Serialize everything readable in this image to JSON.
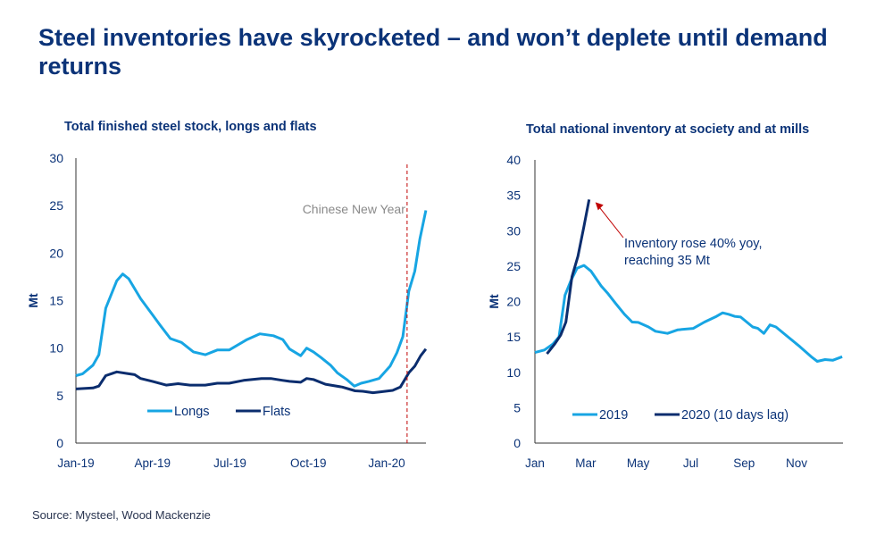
{
  "title": "Steel inventories have skyrocketed – and won’t deplete until demand returns",
  "source": "Source: Mysteel, Wood Mackenzie",
  "colors": {
    "light_blue": "#17a5e3",
    "navy": "#0b2d6e",
    "title": "#0b3378",
    "annotation_red": "#c00000"
  },
  "chart_data": [
    {
      "type": "line",
      "title": "Total finished steel stock, longs and flats",
      "xlabel": "",
      "ylabel": "Mt",
      "ylim": [
        0,
        30
      ],
      "yticks": [
        0,
        5,
        10,
        15,
        20,
        25,
        30
      ],
      "xticks": [
        {
          "date": "2019-01-01",
          "label": "Jan-19"
        },
        {
          "date": "2019-04-01",
          "label": "Apr-19"
        },
        {
          "date": "2019-07-01",
          "label": "Jul-19"
        },
        {
          "date": "2019-10-01",
          "label": "Oct-19"
        },
        {
          "date": "2020-01-01",
          "label": "Jan-20"
        }
      ],
      "grid": false,
      "legend": "bottom-center",
      "annotation": {
        "label": "Chinese New Year",
        "date": "2020-01-25",
        "style": "dashed-vertical-line"
      },
      "series": [
        {
          "name": "Longs",
          "color": "#17a5e3",
          "points": [
            [
              "2019-01-01",
              7.1
            ],
            [
              "2019-01-09",
              7.3
            ],
            [
              "2019-01-21",
              8.2
            ],
            [
              "2019-01-28",
              9.3
            ],
            [
              "2019-02-05",
              14.2
            ],
            [
              "2019-02-18",
              17.1
            ],
            [
              "2019-02-25",
              17.8
            ],
            [
              "2019-03-04",
              17.3
            ],
            [
              "2019-03-18",
              15.2
            ],
            [
              "2019-04-01",
              13.5
            ],
            [
              "2019-04-10",
              12.4
            ],
            [
              "2019-04-22",
              11.0
            ],
            [
              "2019-05-05",
              10.6
            ],
            [
              "2019-05-19",
              9.6
            ],
            [
              "2019-06-02",
              9.3
            ],
            [
              "2019-06-16",
              9.8
            ],
            [
              "2019-06-30",
              9.8
            ],
            [
              "2019-07-21",
              10.9
            ],
            [
              "2019-08-05",
              11.5
            ],
            [
              "2019-08-21",
              11.3
            ],
            [
              "2019-09-01",
              10.9
            ],
            [
              "2019-09-09",
              9.9
            ],
            [
              "2019-09-22",
              9.2
            ],
            [
              "2019-09-29",
              10.0
            ],
            [
              "2019-10-07",
              9.6
            ],
            [
              "2019-10-16",
              9.0
            ],
            [
              "2019-10-27",
              8.2
            ],
            [
              "2019-11-04",
              7.4
            ],
            [
              "2019-11-15",
              6.7
            ],
            [
              "2019-11-24",
              6.0
            ],
            [
              "2019-12-02",
              6.3
            ],
            [
              "2019-12-11",
              6.5
            ],
            [
              "2019-12-23",
              6.8
            ],
            [
              "2020-01-05",
              8.1
            ],
            [
              "2020-01-13",
              9.5
            ],
            [
              "2020-01-20",
              11.2
            ],
            [
              "2020-01-27",
              16.0
            ],
            [
              "2020-02-03",
              18.1
            ],
            [
              "2020-02-09",
              21.5
            ],
            [
              "2020-02-16",
              24.5
            ]
          ]
        },
        {
          "name": "Flats",
          "color": "#0b2d6e",
          "points": [
            [
              "2019-01-01",
              5.7
            ],
            [
              "2019-01-21",
              5.8
            ],
            [
              "2019-01-28",
              6.0
            ],
            [
              "2019-02-05",
              7.1
            ],
            [
              "2019-02-18",
              7.5
            ],
            [
              "2019-03-04",
              7.3
            ],
            [
              "2019-03-11",
              7.2
            ],
            [
              "2019-03-18",
              6.8
            ],
            [
              "2019-04-01",
              6.5
            ],
            [
              "2019-04-17",
              6.1
            ],
            [
              "2019-05-01",
              6.25
            ],
            [
              "2019-05-15",
              6.1
            ],
            [
              "2019-06-02",
              6.1
            ],
            [
              "2019-06-16",
              6.3
            ],
            [
              "2019-06-30",
              6.3
            ],
            [
              "2019-07-17",
              6.6
            ],
            [
              "2019-08-07",
              6.8
            ],
            [
              "2019-08-18",
              6.8
            ],
            [
              "2019-09-01",
              6.6
            ],
            [
              "2019-09-09",
              6.5
            ],
            [
              "2019-09-22",
              6.4
            ],
            [
              "2019-09-29",
              6.8
            ],
            [
              "2019-10-07",
              6.7
            ],
            [
              "2019-10-21",
              6.2
            ],
            [
              "2019-11-10",
              5.9
            ],
            [
              "2019-11-25",
              5.5
            ],
            [
              "2019-12-04",
              5.45
            ],
            [
              "2019-12-16",
              5.3
            ],
            [
              "2019-12-25",
              5.4
            ],
            [
              "2020-01-08",
              5.55
            ],
            [
              "2020-01-17",
              5.9
            ],
            [
              "2020-01-27",
              7.4
            ],
            [
              "2020-02-03",
              8.1
            ],
            [
              "2020-02-10",
              9.2
            ],
            [
              "2020-02-16",
              9.9
            ]
          ]
        }
      ]
    },
    {
      "type": "line",
      "title": "Total national inventory at society and at mills",
      "xlabel": "",
      "ylabel": "Mt",
      "ylim": [
        0,
        40
      ],
      "yticks": [
        0,
        5,
        10,
        15,
        20,
        25,
        30,
        35,
        40
      ],
      "xticks": [
        {
          "date": "01-01",
          "label": "Jan"
        },
        {
          "date": "03-01",
          "label": "Mar"
        },
        {
          "date": "05-01",
          "label": "May"
        },
        {
          "date": "07-01",
          "label": "Jul"
        },
        {
          "date": "09-01",
          "label": "Sep"
        },
        {
          "date": "11-01",
          "label": "Nov"
        }
      ],
      "grid": false,
      "legend": "bottom-center",
      "annotation": {
        "label_lines": [
          "Inventory rose 40% yoy,",
          "reaching 35 Mt"
        ],
        "points_to": [
          "03-05",
          34.4
        ]
      },
      "series": [
        {
          "name": "2019",
          "color": "#17a5e3",
          "points": [
            [
              "01-01",
              12.8
            ],
            [
              "01-12",
              13.15
            ],
            [
              "01-22",
              14.0
            ],
            [
              "01-29",
              15.0
            ],
            [
              "02-05",
              20.9
            ],
            [
              "02-12",
              23.0
            ],
            [
              "02-19",
              24.7
            ],
            [
              "02-27",
              25.1
            ],
            [
              "03-07",
              24.3
            ],
            [
              "03-19",
              22.2
            ],
            [
              "03-27",
              21.1
            ],
            [
              "04-05",
              19.7
            ],
            [
              "04-15",
              18.2
            ],
            [
              "04-24",
              17.1
            ],
            [
              "05-01",
              17.05
            ],
            [
              "05-13",
              16.4
            ],
            [
              "05-21",
              15.8
            ],
            [
              "06-04",
              15.5
            ],
            [
              "06-16",
              16.0
            ],
            [
              "07-04",
              16.2
            ],
            [
              "07-17",
              17.1
            ],
            [
              "07-31",
              17.9
            ],
            [
              "08-07",
              18.4
            ],
            [
              "08-14",
              18.2
            ],
            [
              "08-21",
              17.9
            ],
            [
              "08-28",
              17.8
            ],
            [
              "09-11",
              16.4
            ],
            [
              "09-17",
              16.2
            ],
            [
              "09-24",
              15.5
            ],
            [
              "10-01",
              16.7
            ],
            [
              "10-08",
              16.4
            ],
            [
              "10-22",
              15.0
            ],
            [
              "11-05",
              13.6
            ],
            [
              "11-19",
              12.1
            ],
            [
              "11-25",
              11.55
            ],
            [
              "12-04",
              11.8
            ],
            [
              "12-13",
              11.7
            ],
            [
              "12-24",
              12.2
            ]
          ]
        },
        {
          "name": "2020 (10 days lag)",
          "color": "#0b2d6e",
          "points": [
            [
              "01-15",
              12.6
            ],
            [
              "01-24",
              14.0
            ],
            [
              "01-31",
              15.25
            ],
            [
              "02-06",
              17.1
            ],
            [
              "02-13",
              23.5
            ],
            [
              "02-20",
              26.4
            ],
            [
              "02-27",
              30.6
            ],
            [
              "03-05",
              34.4
            ]
          ]
        }
      ]
    }
  ]
}
